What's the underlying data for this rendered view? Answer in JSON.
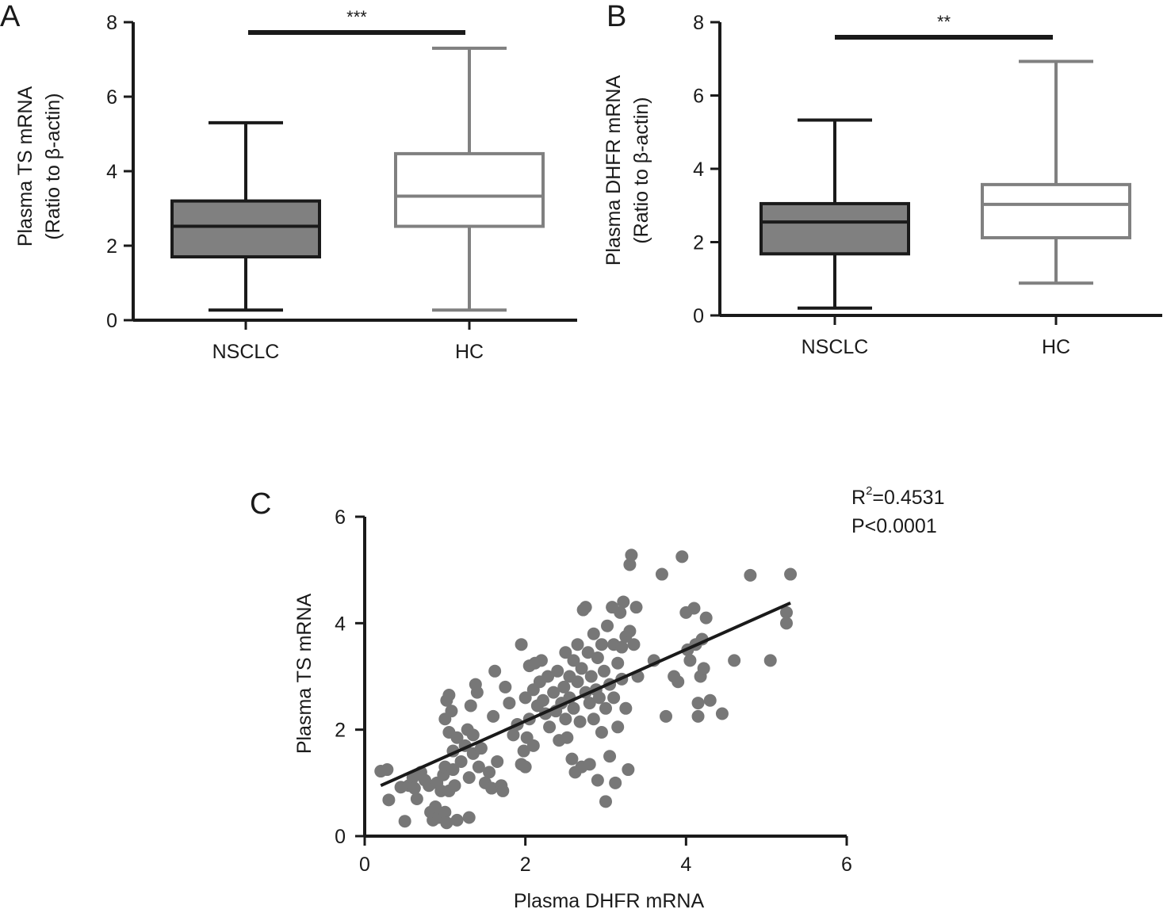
{
  "chart_data": [
    {
      "panel": "A",
      "type": "box",
      "categories": [
        "NSCLC",
        "HC"
      ],
      "ylabel": "Plasma TS mRNA",
      "ylabel2": "(Ratio to β-actin)",
      "ylim": [
        0,
        8
      ],
      "yticks": [
        "0",
        "2",
        "4",
        "6",
        "8"
      ],
      "significance": "***",
      "boxes": [
        {
          "category": "NSCLC",
          "min": 0.27,
          "q1": 1.7,
          "median": 2.52,
          "q3": 3.2,
          "max": 5.3,
          "fill": "#808080",
          "stroke": "#1a1a1a"
        },
        {
          "category": "HC",
          "min": 0.27,
          "q1": 2.52,
          "median": 3.33,
          "q3": 4.47,
          "max": 7.3,
          "fill": "#ffffff",
          "stroke": "#808080"
        }
      ]
    },
    {
      "panel": "B",
      "type": "box",
      "categories": [
        "NSCLC",
        "HC"
      ],
      "ylabel": "Plasma DHFR mRNA",
      "ylabel2": "(Ratio to β-actin)",
      "ylim": [
        0,
        8
      ],
      "yticks": [
        "0",
        "2",
        "4",
        "6",
        "8"
      ],
      "significance": "**",
      "boxes": [
        {
          "category": "NSCLC",
          "min": 0.2,
          "q1": 1.68,
          "median": 2.55,
          "q3": 3.05,
          "max": 5.33,
          "fill": "#808080",
          "stroke": "#1a1a1a"
        },
        {
          "category": "HC",
          "min": 0.88,
          "q1": 2.12,
          "median": 3.03,
          "q3": 3.57,
          "max": 6.93,
          "fill": "#ffffff",
          "stroke": "#808080"
        }
      ]
    },
    {
      "panel": "C",
      "type": "scatter",
      "xlabel": "Plasma DHFR mRNA",
      "ylabel": "Plasma TS mRNA",
      "xlim": [
        0,
        6
      ],
      "ylim": [
        0,
        6
      ],
      "xticks": [
        "0",
        "2",
        "4",
        "6"
      ],
      "yticks": [
        "0",
        "2",
        "4",
        "6"
      ],
      "annotation_r2_base": "R",
      "annotation_r2_sup": "2",
      "annotation_r2_value": "=0.4531",
      "annotation_p": "P<0.0001",
      "fit_line": {
        "x": [
          0.2,
          5.3
        ],
        "y": [
          0.95,
          4.38
        ]
      },
      "point_color": "#777777",
      "points": [
        [
          0.2,
          1.22
        ],
        [
          0.28,
          1.25
        ],
        [
          0.3,
          0.68
        ],
        [
          0.45,
          0.92
        ],
        [
          0.5,
          0.28
        ],
        [
          0.55,
          0.95
        ],
        [
          0.6,
          1.1
        ],
        [
          0.62,
          0.9
        ],
        [
          0.65,
          0.7
        ],
        [
          0.7,
          1.2
        ],
        [
          0.75,
          1.05
        ],
        [
          0.8,
          0.95
        ],
        [
          0.82,
          0.45
        ],
        [
          0.85,
          0.3
        ],
        [
          0.88,
          0.55
        ],
        [
          0.9,
          1.0
        ],
        [
          0.92,
          0.35
        ],
        [
          0.95,
          0.85
        ],
        [
          0.98,
          1.15
        ],
        [
          1.0,
          1.3
        ],
        [
          1.0,
          0.45
        ],
        [
          1.02,
          0.25
        ],
        [
          1.05,
          0.85
        ],
        [
          1.05,
          1.95
        ],
        [
          1.0,
          2.2
        ],
        [
          1.02,
          2.55
        ],
        [
          1.05,
          2.65
        ],
        [
          1.08,
          2.35
        ],
        [
          1.1,
          1.6
        ],
        [
          1.1,
          1.25
        ],
        [
          1.12,
          0.95
        ],
        [
          1.15,
          0.3
        ],
        [
          1.15,
          1.85
        ],
        [
          1.2,
          1.4
        ],
        [
          1.25,
          1.7
        ],
        [
          1.28,
          2.0
        ],
        [
          1.3,
          1.1
        ],
        [
          1.3,
          0.35
        ],
        [
          1.32,
          2.45
        ],
        [
          1.35,
          1.9
        ],
        [
          1.35,
          1.55
        ],
        [
          1.38,
          2.85
        ],
        [
          1.4,
          2.7
        ],
        [
          1.42,
          1.3
        ],
        [
          1.45,
          1.65
        ],
        [
          1.5,
          1.0
        ],
        [
          1.55,
          1.2
        ],
        [
          1.58,
          0.9
        ],
        [
          1.6,
          2.25
        ],
        [
          1.62,
          3.1
        ],
        [
          1.65,
          1.4
        ],
        [
          1.7,
          0.95
        ],
        [
          1.72,
          0.85
        ],
        [
          1.75,
          2.8
        ],
        [
          1.8,
          2.5
        ],
        [
          1.85,
          1.9
        ],
        [
          1.9,
          2.1
        ],
        [
          1.95,
          3.6
        ],
        [
          1.95,
          1.35
        ],
        [
          1.98,
          1.6
        ],
        [
          2.0,
          2.6
        ],
        [
          2.0,
          1.3
        ],
        [
          2.02,
          1.85
        ],
        [
          2.05,
          3.2
        ],
        [
          2.05,
          2.2
        ],
        [
          2.1,
          2.75
        ],
        [
          2.1,
          1.7
        ],
        [
          2.12,
          3.25
        ],
        [
          2.15,
          2.45
        ],
        [
          2.18,
          2.9
        ],
        [
          2.2,
          3.3
        ],
        [
          2.22,
          2.55
        ],
        [
          2.25,
          2.3
        ],
        [
          2.28,
          3.0
        ],
        [
          2.3,
          2.05
        ],
        [
          2.35,
          2.7
        ],
        [
          2.38,
          2.35
        ],
        [
          2.4,
          3.1
        ],
        [
          2.42,
          1.8
        ],
        [
          2.45,
          2.5
        ],
        [
          2.48,
          2.8
        ],
        [
          2.5,
          3.45
        ],
        [
          2.5,
          2.2
        ],
        [
          2.52,
          1.85
        ],
        [
          2.55,
          3.0
        ],
        [
          2.55,
          2.6
        ],
        [
          2.58,
          1.45
        ],
        [
          2.6,
          3.3
        ],
        [
          2.6,
          2.4
        ],
        [
          2.62,
          1.2
        ],
        [
          2.65,
          2.9
        ],
        [
          2.65,
          3.6
        ],
        [
          2.68,
          2.15
        ],
        [
          2.7,
          3.15
        ],
        [
          2.7,
          1.3
        ],
        [
          2.72,
          4.25
        ],
        [
          2.75,
          2.7
        ],
        [
          2.75,
          4.3
        ],
        [
          2.78,
          3.45
        ],
        [
          2.8,
          2.5
        ],
        [
          2.8,
          1.35
        ],
        [
          2.82,
          3.0
        ],
        [
          2.85,
          2.2
        ],
        [
          2.85,
          3.8
        ],
        [
          2.88,
          2.75
        ],
        [
          2.9,
          3.35
        ],
        [
          2.9,
          1.05
        ],
        [
          2.92,
          2.6
        ],
        [
          2.95,
          3.6
        ],
        [
          2.95,
          1.95
        ],
        [
          2.98,
          3.1
        ],
        [
          3.0,
          2.4
        ],
        [
          3.0,
          0.65
        ],
        [
          3.02,
          3.95
        ],
        [
          3.05,
          2.85
        ],
        [
          3.05,
          1.5
        ],
        [
          3.08,
          4.3
        ],
        [
          3.1,
          3.6
        ],
        [
          3.1,
          2.6
        ],
        [
          3.12,
          1.0
        ],
        [
          3.15,
          3.25
        ],
        [
          3.15,
          2.05
        ],
        [
          3.18,
          4.2
        ],
        [
          3.2,
          3.55
        ],
        [
          3.2,
          2.95
        ],
        [
          3.22,
          4.4
        ],
        [
          3.25,
          3.75
        ],
        [
          3.25,
          2.4
        ],
        [
          3.28,
          1.25
        ],
        [
          3.3,
          3.85
        ],
        [
          3.3,
          5.1
        ],
        [
          3.32,
          5.28
        ],
        [
          3.35,
          3.6
        ],
        [
          3.38,
          4.3
        ],
        [
          3.4,
          3.0
        ],
        [
          3.6,
          3.3
        ],
        [
          3.7,
          4.92
        ],
        [
          3.75,
          2.25
        ],
        [
          3.85,
          3.0
        ],
        [
          3.9,
          2.9
        ],
        [
          3.95,
          5.25
        ],
        [
          4.0,
          4.2
        ],
        [
          4.02,
          3.5
        ],
        [
          4.05,
          3.3
        ],
        [
          4.1,
          4.28
        ],
        [
          4.12,
          3.6
        ],
        [
          4.15,
          2.25
        ],
        [
          4.15,
          2.5
        ],
        [
          4.18,
          3.0
        ],
        [
          4.2,
          3.7
        ],
        [
          4.22,
          3.15
        ],
        [
          4.25,
          4.1
        ],
        [
          4.3,
          2.55
        ],
        [
          4.45,
          2.3
        ],
        [
          4.6,
          3.3
        ],
        [
          4.8,
          4.9
        ],
        [
          5.05,
          3.3
        ],
        [
          5.25,
          4.2
        ],
        [
          5.25,
          4.0
        ],
        [
          5.3,
          4.92
        ]
      ]
    }
  ]
}
